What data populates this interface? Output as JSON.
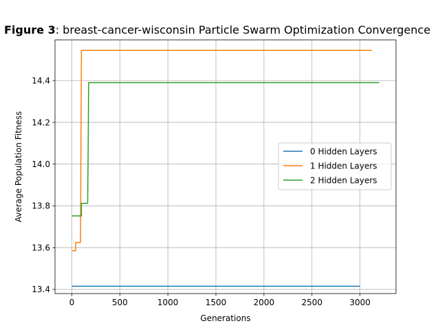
{
  "chart_data": {
    "type": "line",
    "title_prefix": "Figure 3",
    "title_rest": ": breast-cancer-wisconsin Particle Swarm Optimization Convergence",
    "xlabel": "Generations",
    "ylabel": "Average Population Fitness",
    "xlim": [
      -175,
      3375
    ],
    "ylim": [
      13.38,
      14.595
    ],
    "xticks": [
      0,
      500,
      1000,
      1500,
      2000,
      2500,
      3000
    ],
    "yticks": [
      13.4,
      13.6,
      13.8,
      14.0,
      14.2,
      14.4
    ],
    "ytick_labels": [
      "13.4",
      "13.6",
      "13.8",
      "14.0",
      "14.2",
      "14.4"
    ],
    "grid": true,
    "legend_position": "center-right",
    "series": [
      {
        "name": "0 Hidden Layers",
        "color": "#1f77b4",
        "points": [
          [
            0,
            13.415
          ],
          [
            3000,
            13.415
          ]
        ]
      },
      {
        "name": "1 Hidden Layers",
        "color": "#ff7f0e",
        "points": [
          [
            0,
            13.585
          ],
          [
            40,
            13.585
          ],
          [
            40,
            13.625
          ],
          [
            90,
            13.625
          ],
          [
            90,
            13.63
          ],
          [
            100,
            14.545
          ],
          [
            3125,
            14.545
          ]
        ]
      },
      {
        "name": "2 Hidden Layers",
        "color": "#2ca02c",
        "points": [
          [
            0,
            13.752
          ],
          [
            100,
            13.752
          ],
          [
            100,
            13.812
          ],
          [
            165,
            13.812
          ],
          [
            170,
            14.05
          ],
          [
            175,
            14.39
          ],
          [
            3200,
            14.39
          ]
        ]
      }
    ]
  }
}
